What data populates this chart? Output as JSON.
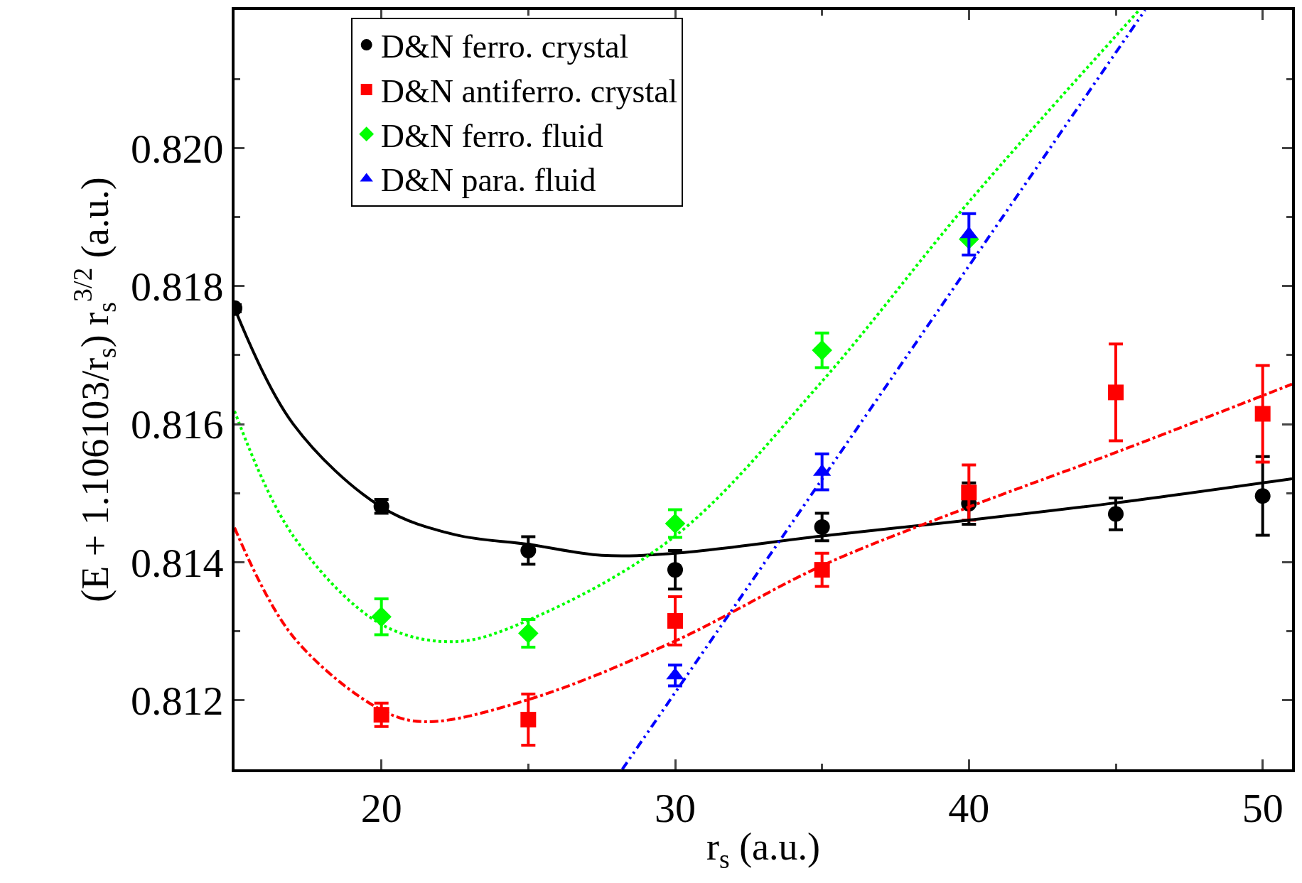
{
  "chart_data": {
    "type": "scatter",
    "xlabel": "r$_{s}$ (a.u.)",
    "ylabel": "(E + 1.106103/r$_{s}$) r$_{s}$$^{3/2}$ (a.u.)",
    "xlim": [
      15,
      51
    ],
    "xticks": [
      20,
      30,
      40,
      50
    ],
    "ylim": [
      0.811,
      0.822
    ],
    "yticks": [
      0.812,
      0.814,
      0.816,
      0.818,
      {
        "value": 0.82,
        "label": "0.820"
      }
    ],
    "legend": "top left",
    "series": [
      {
        "name": "D&N ferro. crystal",
        "color": "#000000",
        "marker": "circle",
        "x": [
          15,
          20,
          25,
          30,
          35,
          40,
          45,
          50
        ],
        "values": [
          0.81768,
          0.81481,
          0.81417,
          0.81389,
          0.81451,
          0.81485,
          0.8147,
          0.81496
        ],
        "errors": [
          5e-05,
          0.0001,
          0.0002,
          0.00028,
          0.0002,
          0.0003,
          0.00023,
          0.00057
        ]
      },
      {
        "name": "D&N antiferro. crystal",
        "color": "#ff0000",
        "marker": "square",
        "x": [
          20,
          25,
          30,
          35,
          40,
          45,
          50
        ],
        "values": [
          0.81179,
          0.81172,
          0.81315,
          0.81389,
          0.81501,
          0.81646,
          0.81615
        ],
        "errors": [
          0.00017,
          0.00037,
          0.00035,
          0.00024,
          0.0004,
          0.0007,
          0.0007
        ]
      },
      {
        "name": "D&N ferro. fluid",
        "color": "#00ff00",
        "marker": "diamond",
        "x": [
          20,
          25,
          30,
          35,
          40
        ],
        "values": [
          0.81321,
          0.81297,
          0.81456,
          0.81707,
          0.81868
        ],
        "errors": [
          0.00026,
          0.0002,
          0.0002,
          0.00025,
          null
        ]
      },
      {
        "name": "D&N para. fluid",
        "color": "#0000ff",
        "marker": "triangle",
        "x": [
          30,
          35,
          40
        ],
        "values": [
          0.81236,
          0.81531,
          0.81875
        ],
        "errors": [
          0.00015,
          0.00026,
          0.0003
        ]
      },
      {
        "type": "line",
        "color": "#000000",
        "line_style": "solid",
        "x": [
          15,
          17,
          20,
          22.5,
          25,
          27.5,
          30,
          35,
          40,
          45,
          51
        ],
        "values": [
          0.81768,
          0.816,
          0.8148,
          0.8144,
          0.81426,
          0.8141,
          0.81413,
          0.81438,
          0.81461,
          0.81486,
          0.81521
        ]
      },
      {
        "type": "line",
        "color": "#ff0000",
        "line_style": "dashdot",
        "x": [
          15,
          17,
          20,
          21.5,
          25,
          30,
          35,
          40,
          45,
          51
        ],
        "values": [
          0.8145,
          0.81292,
          0.81186,
          0.81169,
          0.81201,
          0.81286,
          0.81395,
          0.8148,
          0.81559,
          0.81658
        ]
      },
      {
        "type": "line",
        "color": "#00ff00",
        "line_style": "dotted",
        "x": [
          15,
          17,
          20,
          22.5,
          25,
          30,
          35,
          40,
          45.8
        ],
        "values": [
          0.81619,
          0.81438,
          0.8131,
          0.81285,
          0.81316,
          0.81438,
          0.81662,
          0.81922,
          0.822
        ]
      },
      {
        "type": "line",
        "color": "#0000ff",
        "line_style": "dashdotdot",
        "x": [
          28.2,
          46
        ],
        "values": [
          0.811,
          0.822
        ]
      }
    ]
  }
}
